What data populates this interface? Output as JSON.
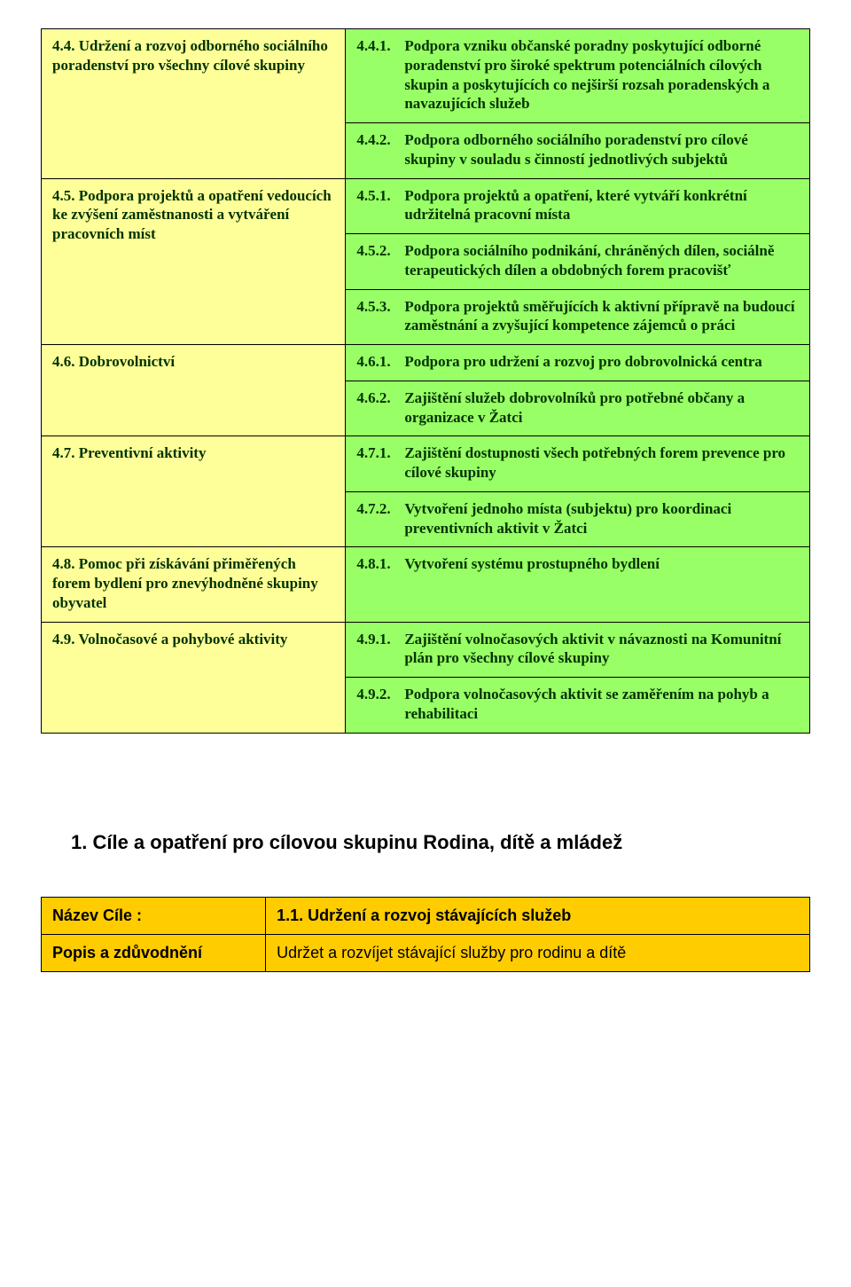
{
  "colors": {
    "left_bg": "#ffff99",
    "right_bg": "#99ff66",
    "text": "#003300",
    "border": "#000000",
    "detail_bg": "#ffcc00",
    "page_bg": "#ffffff"
  },
  "rows": [
    {
      "left": {
        "num": "4.4.",
        "text": "Udržení a rozvoj odborného sociálního poradenství pro všechny cílové skupiny",
        "rowspan": 2
      },
      "right": {
        "num": "4.4.1.",
        "text": "Podpora vzniku občanské poradny poskytující odborné poradenství pro široké spektrum potenciálních cílových skupin a poskytujících co nejširší rozsah poradenských a navazujících služeb"
      }
    },
    {
      "right": {
        "num": "4.4.2.",
        "text": "Podpora odborného sociálního poradenství pro cílové skupiny v souladu s činností jednotlivých subjektů"
      }
    },
    {
      "left": {
        "num": "4.5.",
        "text": "Podpora projektů a opatření vedoucích ke zvýšení  zaměstnanosti a vytváření pracovních míst",
        "rowspan": 3
      },
      "right": {
        "num": "4.5.1.",
        "text": "Podpora projektů a opatření, které vytváří konkrétní udržitelná pracovní místa"
      }
    },
    {
      "right": {
        "num": "4.5.2.",
        "text": "Podpora sociálního podnikání, chráněných dílen, sociálně terapeutických dílen a obdobných forem pracovišť"
      }
    },
    {
      "right": {
        "num": "4.5.3.",
        "text": "Podpora projektů směřujících k aktivní přípravě na budoucí zaměstnání a zvyšující kompetence zájemců o práci"
      }
    },
    {
      "left": {
        "num": "4.6.",
        "text": "Dobrovolnictví",
        "rowspan": 2
      },
      "right": {
        "num": "4.6.1.",
        "text": "Podpora pro udržení a rozvoj pro dobrovolnická centra"
      }
    },
    {
      "right": {
        "num": "4.6.2.",
        "text": "Zajištění služeb dobrovolníků pro potřebné občany a organizace v Žatci"
      }
    },
    {
      "left": {
        "num": "4.7.",
        "text": "Preventivní aktivity",
        "rowspan": 2
      },
      "right": {
        "num": "4.7.1.",
        "text": "Zajištění dostupnosti všech potřebných forem prevence  pro cílové skupiny"
      }
    },
    {
      "right": {
        "num": "4.7.2.",
        "text": "Vytvoření jednoho místa (subjektu) pro koordinaci preventivních aktivit v Žatci"
      }
    },
    {
      "left": {
        "num": "4.8.",
        "text": "Pomoc při získávání přiměřených forem bydlení pro znevýhodněné skupiny obyvatel",
        "rowspan": 1
      },
      "right": {
        "num": "4.8.1.",
        "text": "Vytvoření systému prostupného bydlení"
      }
    },
    {
      "left": {
        "num": "4.9.",
        "text": "Volnočasové a pohybové aktivity",
        "rowspan": 2
      },
      "right": {
        "num": "4.9.1.",
        "text": "Zajištění volnočasových aktivit v návaznosti na Komunitní plán pro všechny cílové skupiny"
      }
    },
    {
      "right": {
        "num": "4.9.2.",
        "text": "Podpora volnočasových aktivit se zaměřením na pohyb a rehabilitaci"
      }
    }
  ],
  "section_heading": "1. Cíle a opatření pro cílovou skupinu Rodina, dítě a mládež",
  "detail": {
    "rows": [
      {
        "label": "Název Cíle :",
        "value": "1.1. Udržení a rozvoj stávajících služeb",
        "bold": true
      },
      {
        "label": "Popis a zdůvodnění",
        "value": "Udržet a rozvíjet stávající služby pro rodinu a dítě",
        "bold": false
      }
    ]
  }
}
